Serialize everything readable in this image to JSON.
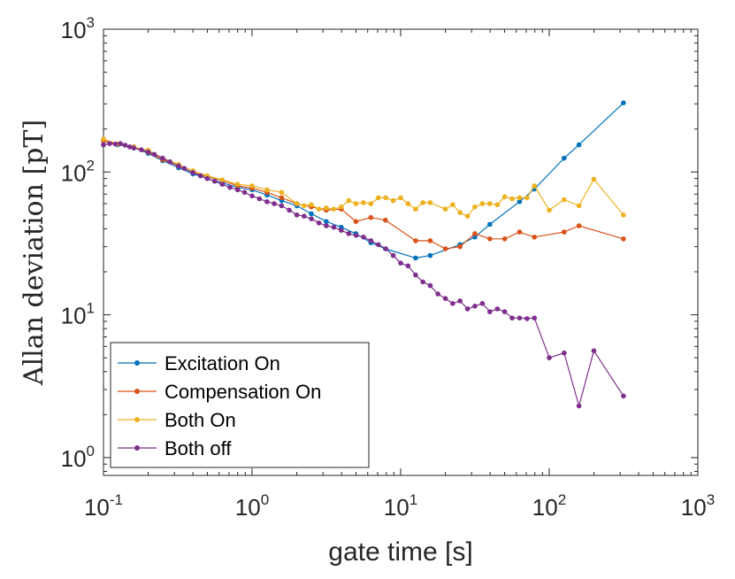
{
  "chart_data": {
    "type": "line",
    "xlabel": "gate time [s]",
    "ylabel": "Allan deviation [pT]",
    "xscale": "log",
    "yscale": "log",
    "xlim": [
      0.1,
      1000
    ],
    "ylim": [
      0.75,
      1000
    ],
    "grid": false,
    "legend_position": "bottom-left",
    "x_ticks": [
      {
        "base": "10",
        "exp": "-1"
      },
      {
        "base": "10",
        "exp": "0"
      },
      {
        "base": "10",
        "exp": "1"
      },
      {
        "base": "10",
        "exp": "2"
      },
      {
        "base": "10",
        "exp": "3"
      }
    ],
    "y_ticks": [
      {
        "base": "10",
        "exp": "0"
      },
      {
        "base": "10",
        "exp": "1"
      },
      {
        "base": "10",
        "exp": "2"
      },
      {
        "base": "10",
        "exp": "3"
      }
    ],
    "series": [
      {
        "name": "Excitation On",
        "color": "#0072BD",
        "points": [
          [
            0.1,
            165
          ],
          [
            0.125,
            155
          ],
          [
            0.16,
            148
          ],
          [
            0.2,
            135
          ],
          [
            0.25,
            120
          ],
          [
            0.32,
            107
          ],
          [
            0.4,
            97
          ],
          [
            0.5,
            90
          ],
          [
            0.63,
            84
          ],
          [
            0.8,
            78
          ],
          [
            1.0,
            75
          ],
          [
            1.26,
            69
          ],
          [
            1.58,
            63
          ],
          [
            2.0,
            58
          ],
          [
            2.5,
            51
          ],
          [
            3.16,
            45
          ],
          [
            3.98,
            41
          ],
          [
            5.0,
            37
          ],
          [
            6.3,
            32
          ],
          [
            7.9,
            29
          ],
          [
            12.6,
            25
          ],
          [
            15.8,
            26
          ],
          [
            25.1,
            31
          ],
          [
            31.6,
            35
          ],
          [
            39.8,
            43
          ],
          [
            63.1,
            62
          ],
          [
            79.4,
            76
          ],
          [
            125.9,
            125
          ],
          [
            158.5,
            155
          ],
          [
            316,
            305
          ]
        ]
      },
      {
        "name": "Compensation On",
        "color": "#D95319",
        "points": [
          [
            0.1,
            165
          ],
          [
            0.125,
            157
          ],
          [
            0.16,
            150
          ],
          [
            0.2,
            137
          ],
          [
            0.25,
            122
          ],
          [
            0.32,
            110
          ],
          [
            0.4,
            99
          ],
          [
            0.5,
            93
          ],
          [
            0.63,
            87
          ],
          [
            0.8,
            80
          ],
          [
            1.0,
            77
          ],
          [
            1.26,
            72
          ],
          [
            1.58,
            66
          ],
          [
            2.0,
            60
          ],
          [
            2.5,
            57
          ],
          [
            3.16,
            54
          ],
          [
            3.98,
            55
          ],
          [
            5.0,
            45
          ],
          [
            6.3,
            48
          ],
          [
            7.9,
            46
          ],
          [
            12.6,
            33
          ],
          [
            15.8,
            33
          ],
          [
            20.0,
            29
          ],
          [
            25.1,
            30
          ],
          [
            31.6,
            37
          ],
          [
            39.8,
            34
          ],
          [
            50.1,
            34
          ],
          [
            63.1,
            38
          ],
          [
            79.4,
            35
          ],
          [
            125.9,
            38
          ],
          [
            158.5,
            42
          ],
          [
            316,
            34
          ]
        ]
      },
      {
        "name": "Both On",
        "color": "#EDB120",
        "points": [
          [
            0.1,
            170
          ],
          [
            0.125,
            157
          ],
          [
            0.16,
            149
          ],
          [
            0.2,
            142
          ],
          [
            0.25,
            125
          ],
          [
            0.32,
            113
          ],
          [
            0.4,
            102
          ],
          [
            0.5,
            94
          ],
          [
            0.63,
            88
          ],
          [
            0.8,
            82
          ],
          [
            1.0,
            80
          ],
          [
            1.26,
            75
          ],
          [
            1.58,
            72
          ],
          [
            2.0,
            60
          ],
          [
            2.24,
            58
          ],
          [
            2.5,
            59
          ],
          [
            2.82,
            55
          ],
          [
            3.16,
            56
          ],
          [
            3.55,
            55
          ],
          [
            3.98,
            57
          ],
          [
            4.47,
            63
          ],
          [
            5.0,
            60
          ],
          [
            5.62,
            61
          ],
          [
            6.3,
            60
          ],
          [
            7.08,
            66
          ],
          [
            7.94,
            66
          ],
          [
            8.91,
            63
          ],
          [
            10.0,
            66
          ],
          [
            11.2,
            60
          ],
          [
            12.6,
            55
          ],
          [
            14.1,
            61
          ],
          [
            15.8,
            61
          ],
          [
            20.0,
            55
          ],
          [
            22.4,
            59
          ],
          [
            25.1,
            52
          ],
          [
            28.2,
            49
          ],
          [
            31.6,
            57
          ],
          [
            35.5,
            60
          ],
          [
            39.8,
            60
          ],
          [
            44.7,
            59
          ],
          [
            50.1,
            67
          ],
          [
            56.2,
            65
          ],
          [
            63.1,
            66
          ],
          [
            70.8,
            66
          ],
          [
            79.4,
            80
          ],
          [
            100,
            54
          ],
          [
            125.9,
            64
          ],
          [
            158.5,
            58
          ],
          [
            199.5,
            89
          ],
          [
            316,
            50
          ]
        ]
      },
      {
        "name": "Both off",
        "color": "#7E2F8E",
        "points": [
          [
            0.1,
            155
          ],
          [
            0.11,
            158
          ],
          [
            0.12,
            157
          ],
          [
            0.13,
            158
          ],
          [
            0.14,
            154
          ],
          [
            0.15,
            150
          ],
          [
            0.16,
            147
          ],
          [
            0.18,
            143
          ],
          [
            0.2,
            138
          ],
          [
            0.22,
            133
          ],
          [
            0.25,
            125
          ],
          [
            0.28,
            118
          ],
          [
            0.32,
            110
          ],
          [
            0.35,
            106
          ],
          [
            0.4,
            99
          ],
          [
            0.45,
            94
          ],
          [
            0.5,
            90
          ],
          [
            0.56,
            86
          ],
          [
            0.63,
            82
          ],
          [
            0.71,
            78
          ],
          [
            0.8,
            75
          ],
          [
            0.89,
            72
          ],
          [
            1.0,
            68
          ],
          [
            1.12,
            65
          ],
          [
            1.26,
            62
          ],
          [
            1.41,
            60
          ],
          [
            1.58,
            58
          ],
          [
            1.78,
            54
          ],
          [
            2.0,
            50
          ],
          [
            2.24,
            49
          ],
          [
            2.51,
            47
          ],
          [
            2.82,
            44
          ],
          [
            3.16,
            42
          ],
          [
            3.55,
            41
          ],
          [
            3.98,
            39
          ],
          [
            4.47,
            37
          ],
          [
            5.01,
            36
          ],
          [
            5.62,
            35
          ],
          [
            6.31,
            33
          ],
          [
            7.08,
            31
          ],
          [
            7.94,
            29
          ],
          [
            8.91,
            26
          ],
          [
            10.0,
            23
          ],
          [
            11.2,
            22
          ],
          [
            12.6,
            19
          ],
          [
            14.1,
            17
          ],
          [
            15.8,
            16
          ],
          [
            17.8,
            14
          ],
          [
            20.0,
            13
          ],
          [
            22.4,
            12
          ],
          [
            25.1,
            12.5
          ],
          [
            28.2,
            11
          ],
          [
            31.6,
            11.5
          ],
          [
            35.5,
            12
          ],
          [
            39.8,
            10.5
          ],
          [
            44.7,
            11
          ],
          [
            50.1,
            10.5
          ],
          [
            56.2,
            9.5
          ],
          [
            63.1,
            9.5
          ],
          [
            70.8,
            9.4
          ],
          [
            79.4,
            9.5
          ],
          [
            100,
            5.0
          ],
          [
            125.9,
            5.4
          ],
          [
            158.5,
            2.3
          ],
          [
            199.5,
            5.6
          ],
          [
            316,
            2.7
          ]
        ]
      }
    ]
  }
}
